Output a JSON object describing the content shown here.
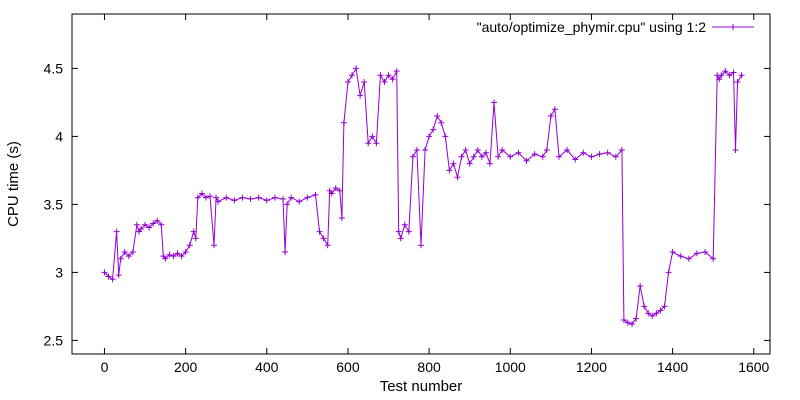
{
  "chart_data": {
    "type": "line",
    "xlabel": "Test number",
    "ylabel": "CPU time (s)",
    "xlim": [
      -80,
      1640
    ],
    "ylim": [
      2.4,
      4.9
    ],
    "x_ticks": [
      0,
      200,
      400,
      600,
      800,
      1000,
      1200,
      1400,
      1600
    ],
    "y_ticks": [
      2.5,
      3,
      3.5,
      4,
      4.5
    ],
    "x_tick_labels": [
      "0",
      "200",
      "400",
      "600",
      "800",
      "1000",
      "1200",
      "1400",
      "1600"
    ],
    "y_tick_labels": [
      "2.5",
      "3",
      "3.5",
      "4",
      "4.5"
    ],
    "grid": false,
    "legend_position": "top-right",
    "marker": "plus",
    "series": [
      {
        "name": "\"auto/optimize_phymir.cpu\" using 1:2",
        "color": "#9400d3",
        "x": [
          0,
          10,
          20,
          30,
          35,
          40,
          50,
          60,
          70,
          80,
          85,
          90,
          100,
          110,
          120,
          130,
          140,
          145,
          150,
          160,
          170,
          180,
          190,
          200,
          210,
          220,
          225,
          230,
          240,
          250,
          260,
          270,
          275,
          280,
          300,
          320,
          340,
          360,
          380,
          400,
          420,
          440,
          445,
          450,
          460,
          480,
          500,
          520,
          530,
          540,
          550,
          555,
          560,
          570,
          580,
          585,
          590,
          600,
          610,
          620,
          630,
          640,
          650,
          660,
          670,
          680,
          690,
          700,
          710,
          720,
          725,
          730,
          740,
          750,
          760,
          770,
          780,
          790,
          800,
          810,
          820,
          830,
          840,
          850,
          860,
          870,
          880,
          890,
          900,
          910,
          920,
          930,
          940,
          950,
          960,
          970,
          980,
          1000,
          1020,
          1040,
          1060,
          1080,
          1090,
          1100,
          1110,
          1120,
          1140,
          1160,
          1180,
          1200,
          1220,
          1240,
          1260,
          1275,
          1280,
          1290,
          1300,
          1310,
          1320,
          1330,
          1340,
          1350,
          1360,
          1370,
          1380,
          1390,
          1400,
          1420,
          1440,
          1460,
          1480,
          1500,
          1510,
          1515,
          1520,
          1530,
          1540,
          1550,
          1555,
          1560,
          1570
        ],
        "y": [
          3.0,
          2.97,
          2.95,
          3.3,
          2.98,
          3.1,
          3.15,
          3.12,
          3.15,
          3.35,
          3.3,
          3.32,
          3.35,
          3.33,
          3.36,
          3.38,
          3.35,
          3.12,
          3.1,
          3.13,
          3.12,
          3.14,
          3.12,
          3.15,
          3.2,
          3.3,
          3.25,
          3.55,
          3.58,
          3.55,
          3.56,
          3.2,
          3.55,
          3.52,
          3.55,
          3.53,
          3.55,
          3.54,
          3.55,
          3.53,
          3.55,
          3.54,
          3.15,
          3.5,
          3.55,
          3.52,
          3.55,
          3.57,
          3.3,
          3.25,
          3.2,
          3.6,
          3.58,
          3.62,
          3.6,
          3.4,
          4.1,
          4.4,
          4.45,
          4.5,
          4.3,
          4.4,
          3.95,
          4.0,
          3.95,
          4.45,
          4.4,
          4.45,
          4.42,
          4.48,
          3.3,
          3.25,
          3.35,
          3.3,
          3.85,
          3.9,
          3.2,
          3.9,
          4.0,
          4.05,
          4.15,
          4.1,
          4.0,
          3.75,
          3.8,
          3.7,
          3.85,
          3.9,
          3.8,
          3.85,
          3.9,
          3.85,
          3.88,
          3.8,
          4.25,
          3.85,
          3.9,
          3.85,
          3.88,
          3.82,
          3.87,
          3.85,
          3.9,
          4.15,
          4.2,
          3.85,
          3.9,
          3.83,
          3.88,
          3.85,
          3.87,
          3.88,
          3.85,
          3.9,
          2.65,
          2.63,
          2.62,
          2.66,
          2.9,
          2.75,
          2.7,
          2.68,
          2.7,
          2.72,
          2.75,
          3.0,
          3.15,
          3.12,
          3.1,
          3.14,
          3.15,
          3.1,
          4.45,
          4.42,
          4.45,
          4.48,
          4.45,
          4.47,
          3.9,
          4.4,
          4.45
        ]
      }
    ]
  }
}
